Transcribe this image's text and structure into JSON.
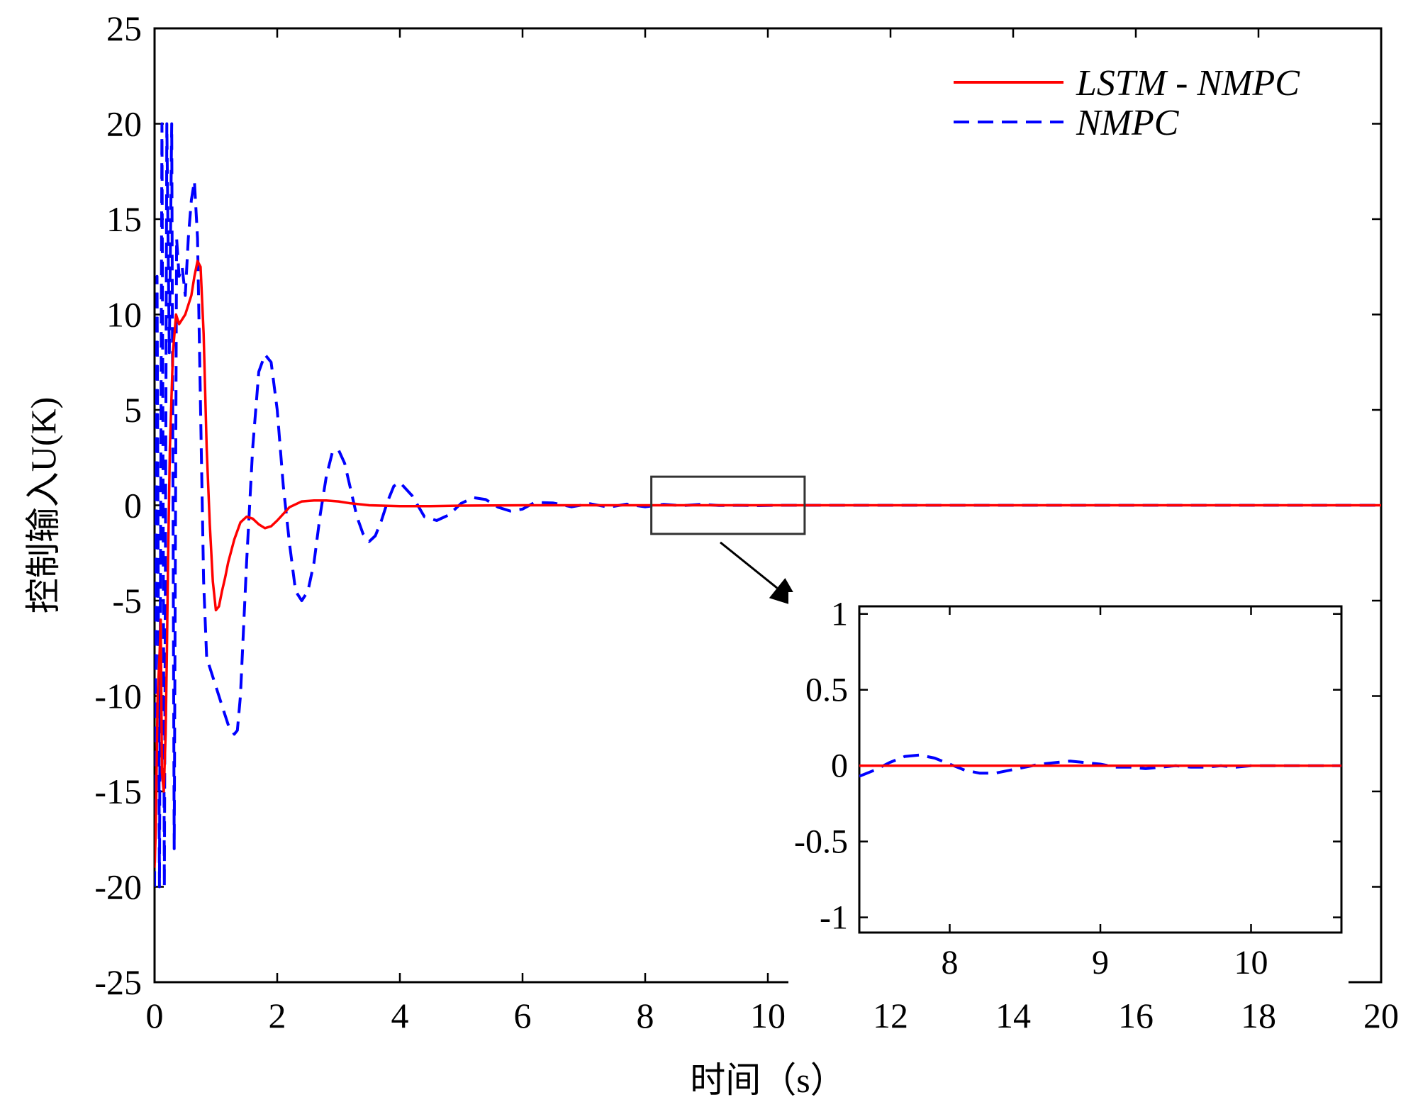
{
  "chart_data": {
    "type": "line",
    "title": "",
    "xlabel": "时间（s）",
    "ylabel": "控制输入U(K)",
    "xlim": [
      0,
      20
    ],
    "ylim": [
      -25,
      25
    ],
    "xticks": [
      0,
      2,
      4,
      6,
      8,
      10,
      12,
      14,
      16,
      18,
      20
    ],
    "yticks": [
      -25,
      -20,
      -15,
      -10,
      -5,
      0,
      5,
      10,
      15,
      20,
      25
    ],
    "legend": {
      "position": "top-right",
      "entries": [
        "LSTM - NMPC",
        "NMPC"
      ]
    },
    "series": [
      {
        "name": "LSTM - NMPC",
        "color": "#ff0000",
        "style": "solid",
        "x": [
          0,
          0.02,
          0.05,
          0.08,
          0.1,
          0.12,
          0.15,
          0.18,
          0.2,
          0.22,
          0.25,
          0.3,
          0.35,
          0.4,
          0.5,
          0.6,
          0.65,
          0.7,
          0.75,
          0.8,
          0.85,
          0.9,
          0.95,
          1.0,
          1.05,
          1.1,
          1.15,
          1.2,
          1.3,
          1.4,
          1.5,
          1.6,
          1.7,
          1.8,
          1.9,
          2.0,
          2.2,
          2.4,
          2.6,
          2.8,
          3.0,
          3.2,
          3.5,
          4.0,
          4.5,
          5.0,
          6.0,
          8.0,
          10.0,
          20.0
        ],
        "y": [
          -19,
          -17,
          -10,
          -8,
          -6,
          -14,
          -15,
          -12,
          -8,
          -3,
          3,
          8,
          10,
          9.5,
          10,
          11,
          12,
          12.8,
          12.5,
          9,
          3,
          -1,
          -4,
          -5.5,
          -5.3,
          -4.5,
          -3.8,
          -3,
          -1.8,
          -0.9,
          -0.6,
          -0.7,
          -1.0,
          -1.2,
          -1.1,
          -0.8,
          -0.1,
          0.2,
          0.25,
          0.25,
          0.2,
          0.1,
          0.0,
          -0.05,
          -0.05,
          -0.02,
          0.0,
          0.0,
          0.0,
          0.0
        ]
      },
      {
        "name": "NMPC",
        "color": "#0000ff",
        "style": "dashed",
        "x": [
          0,
          0.04,
          0.08,
          0.12,
          0.16,
          0.2,
          0.24,
          0.28,
          0.32,
          0.36,
          0.4,
          0.45,
          0.5,
          0.55,
          0.6,
          0.65,
          0.7,
          0.75,
          0.8,
          0.85,
          0.9,
          0.95,
          1.0,
          1.1,
          1.2,
          1.3,
          1.35,
          1.4,
          1.5,
          1.6,
          1.7,
          1.8,
          1.9,
          2.0,
          2.1,
          2.2,
          2.3,
          2.4,
          2.5,
          2.6,
          2.7,
          2.8,
          2.9,
          3.0,
          3.1,
          3.2,
          3.3,
          3.4,
          3.5,
          3.6,
          3.7,
          3.8,
          3.9,
          4.0,
          4.2,
          4.4,
          4.6,
          4.8,
          5.0,
          5.2,
          5.4,
          5.6,
          5.8,
          6.0,
          6.2,
          6.5,
          6.8,
          7.1,
          7.4,
          7.7,
          8.0,
          8.3,
          8.6,
          8.9,
          9.2,
          9.5,
          9.8,
          10.2,
          10.6,
          11.0,
          20.0
        ],
        "y": [
          -20,
          12,
          -20,
          20,
          -20,
          20,
          8,
          20,
          -18,
          14,
          12,
          12.5,
          11,
          14,
          16,
          17,
          14,
          5,
          -4,
          -8,
          -8.5,
          -9,
          -9.5,
          -10.5,
          -11.5,
          -12,
          -11.8,
          -10,
          -3,
          3,
          7,
          7.9,
          7.5,
          5,
          1,
          -2,
          -4.5,
          -5,
          -4.5,
          -3,
          -0.5,
          1.5,
          2.8,
          2.9,
          2.2,
          0.8,
          -0.6,
          -1.5,
          -1.9,
          -1.6,
          -0.8,
          0.2,
          1.0,
          1.2,
          0.5,
          -0.6,
          -0.8,
          -0.5,
          0.1,
          0.4,
          0.3,
          -0.1,
          -0.3,
          -0.2,
          0.15,
          0.12,
          -0.08,
          0.08,
          -0.1,
          0.06,
          -0.08,
          0.05,
          -0.02,
          0.05,
          -0.01,
          0.0,
          -0.02,
          0.0,
          0.0,
          0.0,
          0.0
        ]
      }
    ],
    "zoom_box": {
      "xlim": [
        8.1,
        10.6
      ],
      "ylim": [
        -1.5,
        1.5
      ]
    },
    "inset": {
      "type": "line",
      "xlim": [
        7.4,
        10.6
      ],
      "ylim": [
        -1.1,
        1.05
      ],
      "xticks": [
        8,
        9,
        10
      ],
      "yticks": [
        1,
        0.5,
        0,
        -0.5,
        -1
      ],
      "yticklabels": [
        "1",
        "0.5",
        "0",
        "-0.5",
        "-1"
      ],
      "series": [
        {
          "name": "LSTM - NMPC",
          "color": "#ff0000",
          "style": "solid",
          "x": [
            7.4,
            10.6
          ],
          "y": [
            0.0,
            0.0
          ]
        },
        {
          "name": "NMPC",
          "color": "#0000ff",
          "style": "dashed",
          "x": [
            7.4,
            7.5,
            7.6,
            7.7,
            7.8,
            7.9,
            8.0,
            8.1,
            8.2,
            8.3,
            8.4,
            8.5,
            8.6,
            8.7,
            8.8,
            8.9,
            9.0,
            9.1,
            9.2,
            9.3,
            9.4,
            9.5,
            9.6,
            9.7,
            9.8,
            9.9,
            10.0,
            10.2,
            10.4,
            10.6
          ],
          "y": [
            -0.07,
            -0.03,
            0.02,
            0.06,
            0.07,
            0.05,
            0.01,
            -0.03,
            -0.05,
            -0.05,
            -0.03,
            -0.01,
            0.01,
            0.02,
            0.03,
            0.02,
            0.01,
            -0.01,
            -0.01,
            -0.02,
            -0.01,
            0.0,
            -0.01,
            -0.01,
            0.0,
            -0.01,
            0.0,
            0.0,
            0.0,
            0.0
          ]
        }
      ]
    }
  }
}
